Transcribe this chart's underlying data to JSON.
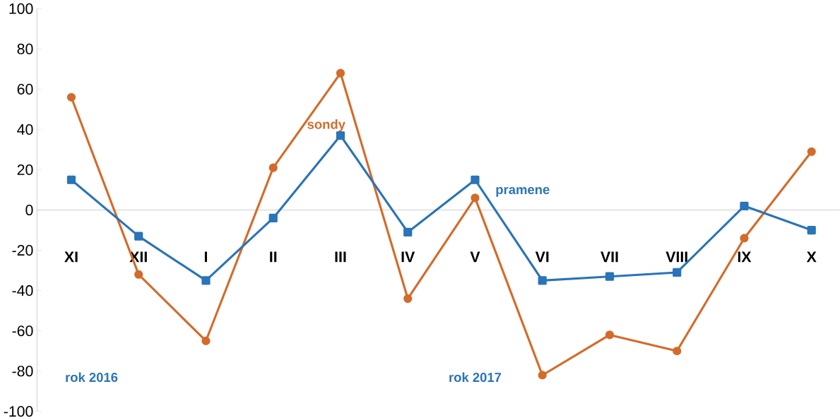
{
  "chart_data": {
    "type": "line",
    "categories": [
      "XI",
      "XII",
      "I",
      "II",
      "III",
      "IV",
      "V",
      "VI",
      "VII",
      "VIII",
      "IX",
      "X"
    ],
    "series": [
      {
        "name": "sondy",
        "color": "#d46b2a",
        "marker": "circle",
        "values": [
          56,
          -32,
          -65,
          21,
          68,
          -44,
          6,
          -82,
          -62,
          -70,
          -14,
          29
        ]
      },
      {
        "name": "pramene",
        "color": "#2a74b8",
        "marker": "square",
        "values": [
          15,
          -13,
          -35,
          -4,
          37,
          -11,
          15,
          -35,
          -33,
          -31,
          2,
          -10
        ]
      }
    ],
    "ylim": [
      -100,
      100
    ],
    "yticks": [
      -100,
      -80,
      -60,
      -40,
      -20,
      0,
      20,
      40,
      60,
      80,
      100
    ],
    "annotations": [
      "rok 2016",
      "rok 2017"
    ]
  }
}
